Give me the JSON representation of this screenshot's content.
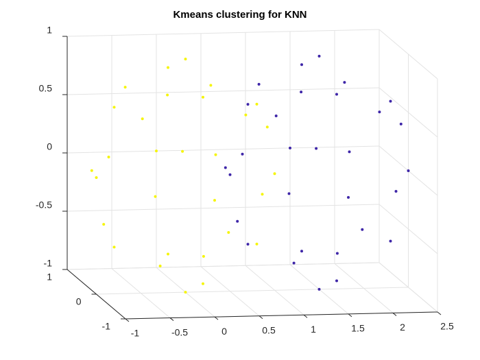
{
  "chart_data": {
    "type": "scatter3d",
    "title": "Kmeans clustering for KNN",
    "xlim": [
      -1,
      2.5
    ],
    "xticks": [
      -1,
      -0.5,
      0,
      0.5,
      1,
      1.5,
      2,
      2.5
    ],
    "ylim": [
      -1,
      1
    ],
    "yticks": [
      -1,
      0,
      1
    ],
    "zlim": [
      -1,
      1
    ],
    "zticks": [
      -1,
      -0.5,
      0,
      0.5,
      1
    ],
    "grid": true,
    "series": [
      {
        "color": "#f5f50a",
        "x": [
          1,
          -1,
          0,
          0,
          0,
          0,
          0.6,
          0.6,
          -0.6,
          -0.6,
          0.8,
          -0.8,
          0.8,
          -0.8,
          0,
          0,
          0,
          0,
          0.48,
          -0.48,
          0.48,
          -0.48,
          0.64,
          -0.64,
          0.36,
          -0.36,
          0.8,
          -0.8,
          0.28,
          -0.96
        ],
        "y": [
          0,
          0,
          1,
          -1,
          0,
          0,
          0.8,
          -0.8,
          0.8,
          -0.8,
          0,
          0,
          0,
          0,
          0.6,
          -0.6,
          0.6,
          -0.6,
          0.6,
          0.6,
          -0.6,
          -0.6,
          0.48,
          -0.48,
          0.48,
          -0.48,
          -0.36,
          0.36,
          0.96,
          0.28
        ],
        "z": [
          0,
          0,
          0,
          0,
          1,
          -1,
          0,
          0,
          0,
          0,
          0.6,
          0.6,
          -0.6,
          -0.6,
          0.8,
          0.8,
          -0.8,
          -0.8,
          0.64,
          0.64,
          0.64,
          -0.64,
          -0.6,
          0.6,
          -0.8,
          0.8,
          0.48,
          -0.48,
          0,
          0
        ]
      },
      {
        "color": "#3e26a8",
        "x": [
          2.5,
          0.5,
          1.5,
          1.5,
          1.5,
          1.5,
          2.1,
          2.1,
          0.9,
          0.9,
          2.3,
          0.7,
          2.3,
          0.7,
          1.5,
          1.5,
          1.5,
          1.5,
          1.98,
          1.02,
          1.98,
          1.02,
          2.14,
          0.86,
          1.86,
          1.14,
          2.3,
          0.7,
          1.78,
          0.54
        ],
        "y": [
          0,
          0,
          1,
          -1,
          0,
          0,
          0.8,
          -0.8,
          0.8,
          -0.8,
          0,
          0,
          0,
          0,
          0.6,
          -0.6,
          0.6,
          -0.6,
          0.6,
          0.6,
          -0.6,
          -0.6,
          0.48,
          -0.48,
          0.48,
          -0.48,
          -0.36,
          0.36,
          0.96,
          0.28
        ],
        "z": [
          0,
          0,
          0,
          0,
          1,
          -1,
          0,
          0,
          0,
          0,
          0.6,
          0.6,
          -0.6,
          -0.6,
          0.8,
          0.8,
          -0.8,
          -0.8,
          0.64,
          0.64,
          0.64,
          -0.64,
          -0.6,
          0.6,
          -0.8,
          0.8,
          0.48,
          -0.48,
          0,
          0
        ]
      }
    ]
  }
}
